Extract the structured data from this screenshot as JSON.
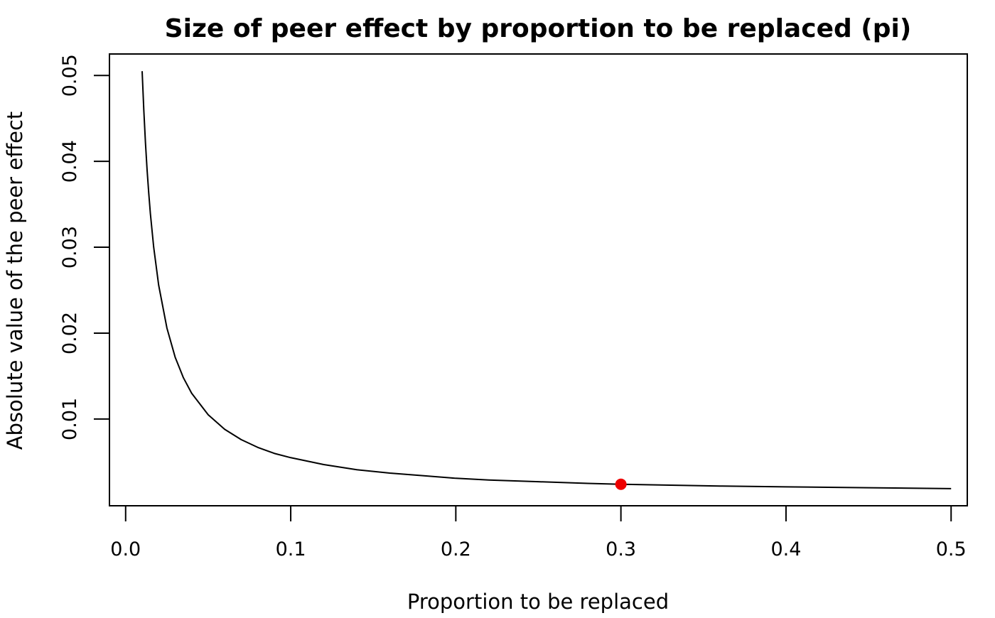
{
  "chart_data": {
    "type": "line",
    "title": "Size of peer effect by proportion to be replaced (pi)",
    "xlabel": "Proportion to be replaced",
    "ylabel": "Absolute value of the peer effect",
    "xlim": [
      -0.0098,
      0.5098
    ],
    "ylim": [
      -0.0001,
      0.0525
    ],
    "x_ticks": [
      "0.0",
      "0.1",
      "0.2",
      "0.3",
      "0.4",
      "0.5"
    ],
    "y_ticks": [
      "0.01",
      "0.02",
      "0.03",
      "0.04",
      "0.05"
    ],
    "grid": false,
    "legend": "none",
    "series": [
      {
        "color": "#000000",
        "points": [
          [
            0.01,
            0.0505
          ],
          [
            0.011,
            0.046
          ],
          [
            0.012,
            0.0422
          ],
          [
            0.013,
            0.039
          ],
          [
            0.014,
            0.0363
          ],
          [
            0.015,
            0.0339
          ],
          [
            0.017,
            0.03
          ],
          [
            0.02,
            0.0256
          ],
          [
            0.025,
            0.0206
          ],
          [
            0.03,
            0.0172
          ],
          [
            0.035,
            0.0148
          ],
          [
            0.04,
            0.013
          ],
          [
            0.05,
            0.0105
          ],
          [
            0.06,
            0.0088
          ],
          [
            0.07,
            0.0076
          ],
          [
            0.08,
            0.0067
          ],
          [
            0.09,
            0.006
          ],
          [
            0.1,
            0.0055
          ],
          [
            0.12,
            0.0047
          ],
          [
            0.14,
            0.0041
          ],
          [
            0.16,
            0.0037
          ],
          [
            0.18,
            0.0034
          ],
          [
            0.2,
            0.0031
          ],
          [
            0.22,
            0.0029
          ],
          [
            0.25,
            0.0027
          ],
          [
            0.28,
            0.0025
          ],
          [
            0.3,
            0.0024
          ],
          [
            0.33,
            0.0023
          ],
          [
            0.36,
            0.0022
          ],
          [
            0.4,
            0.0021
          ],
          [
            0.45,
            0.002
          ],
          [
            0.5,
            0.0019
          ]
        ]
      }
    ],
    "highlight_point": {
      "x": 0.3,
      "y": 0.0024,
      "color": "#ee0000"
    }
  }
}
